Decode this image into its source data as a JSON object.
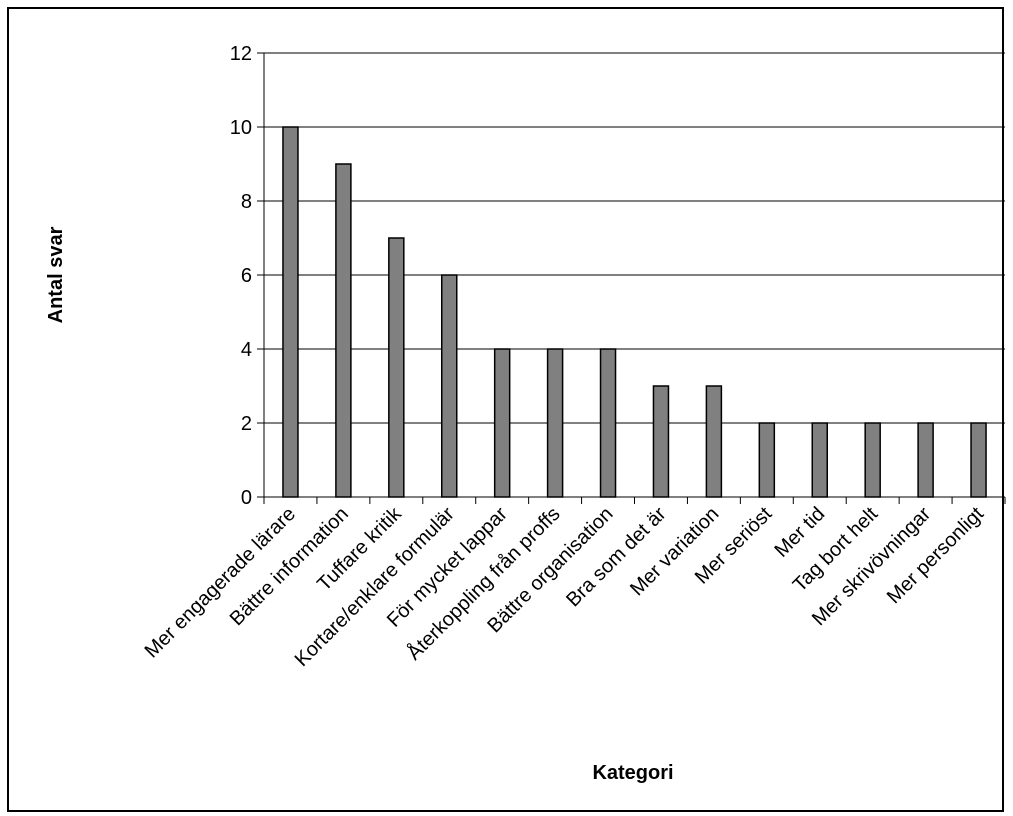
{
  "chart_data": {
    "type": "bar",
    "title": "",
    "xlabel": "Kategori",
    "ylabel": "Antal svar",
    "categories": [
      "Mer engagerade lärare",
      "Bättre information",
      "Tuffare kritik",
      "Kortare/enklare formulär",
      "För mycket lappar",
      "Återkoppling från proffs",
      "Bättre organisation",
      "Bra som det är",
      "Mer variation",
      "Mer seriöst",
      "Mer tid",
      "Tag bort helt",
      "Mer skrivövningar",
      "Mer personligt"
    ],
    "values": [
      10,
      9,
      7,
      6,
      4,
      4,
      4,
      3,
      3,
      2,
      2,
      2,
      2,
      2
    ],
    "ylim": [
      0,
      12
    ],
    "yticks": [
      "0",
      "2",
      "4",
      "6",
      "8",
      "10",
      "12"
    ],
    "grid": true,
    "legend": "none",
    "colors": {
      "bar_fill": "#808080",
      "bar_stroke": "#000000",
      "grid": "#000000",
      "frame": "#000000"
    }
  }
}
